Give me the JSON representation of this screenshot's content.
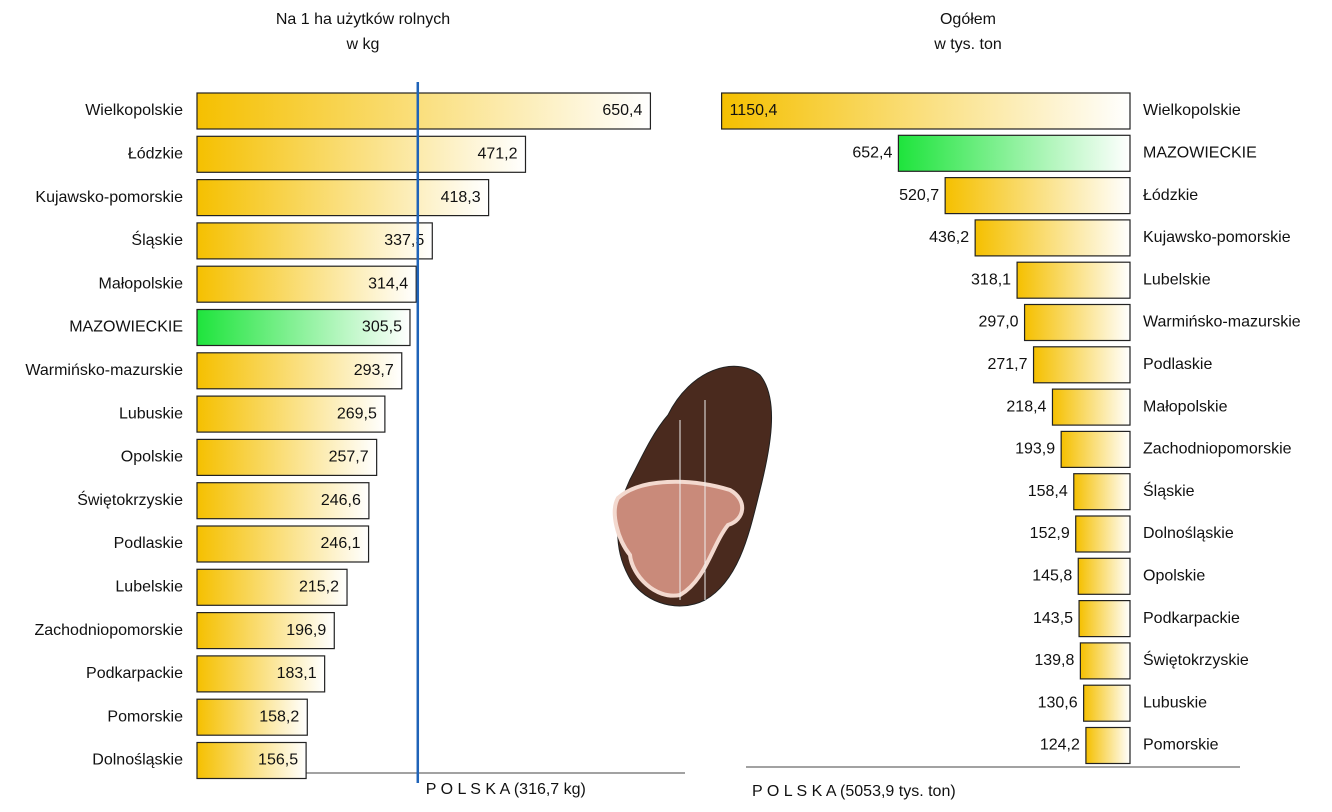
{
  "chart_data": [
    {
      "type": "bar",
      "orientation": "horizontal",
      "reversed": false,
      "title": "Na 1 ha użytków rolnych",
      "subtitle": "w kg",
      "categories": [
        "Wielkopolskie",
        "Łódzkie",
        "Kujawsko-pomorskie",
        "Śląskie",
        "Małopolskie",
        "MAZOWIECKIE",
        "Warmińsko-mazurskie",
        "Lubuskie",
        "Opolskie",
        "Świętokrzyskie",
        "Podlaskie",
        "Lubelskie",
        "Zachodniopomorskie",
        "Podkarpackie",
        "Pomorskie",
        "Dolnośląskie"
      ],
      "values": [
        650.4,
        471.2,
        418.3,
        337.5,
        314.4,
        305.5,
        293.7,
        269.5,
        257.7,
        246.6,
        246.1,
        215.2,
        196.9,
        183.1,
        158.2,
        156.5
      ],
      "value_labels": [
        "650,4",
        "471,2",
        "418,3",
        "337,5",
        "314,4",
        "305,5",
        "293,7",
        "269,5",
        "257,7",
        "246,6",
        "246,1",
        "215,2",
        "196,9",
        "183,1",
        "158,2",
        "156,5"
      ],
      "colors": [
        "#f5c000",
        "#f5c000",
        "#f5c000",
        "#f5c000",
        "#f5c000",
        "#1ee43c",
        "#f5c000",
        "#f5c000",
        "#f5c000",
        "#f5c000",
        "#f5c000",
        "#f5c000",
        "#f5c000",
        "#f5c000",
        "#f5c000",
        "#f5c000"
      ],
      "xlim": [
        0,
        700
      ],
      "reference": {
        "value": 316.7,
        "label": "P O L S K A (316,7 kg)",
        "color": "#1f63b8"
      }
    },
    {
      "type": "bar",
      "orientation": "horizontal",
      "reversed": true,
      "title": "Ogółem",
      "subtitle": "w tys. ton",
      "categories": [
        "Wielkopolskie",
        "MAZOWIECKIE",
        "Łódzkie",
        "Kujawsko-pomorskie",
        "Lubelskie",
        "Warmińsko-mazurskie",
        "Podlaskie",
        "Małopolskie",
        "Zachodniopomorskie",
        "Śląskie",
        "Dolnośląskie",
        "Opolskie",
        "Podkarpackie",
        "Świętokrzyskie",
        "Lubuskie",
        "Pomorskie"
      ],
      "values": [
        1150.4,
        652.4,
        520.7,
        436.2,
        318.1,
        297.0,
        271.7,
        218.4,
        193.9,
        158.4,
        152.9,
        145.8,
        143.5,
        139.8,
        130.6,
        124.2
      ],
      "value_labels": [
        "1150,4",
        "652,4",
        "520,7",
        "436,2",
        "318,1",
        "297,0",
        "271,7",
        "218,4",
        "193,9",
        "158,4",
        "152,9",
        "145,8",
        "143,5",
        "139,8",
        "130,6",
        "124,2"
      ],
      "colors": [
        "#f5c000",
        "#1ee43c",
        "#f5c000",
        "#f5c000",
        "#f5c000",
        "#f5c000",
        "#f5c000",
        "#f5c000",
        "#f5c000",
        "#f5c000",
        "#f5c000",
        "#f5c000",
        "#f5c000",
        "#f5c000",
        "#f5c000",
        "#f5c000"
      ],
      "xlim": [
        0,
        1200
      ],
      "note": "P O L S K A (5053,9 tys. ton)"
    }
  ]
}
